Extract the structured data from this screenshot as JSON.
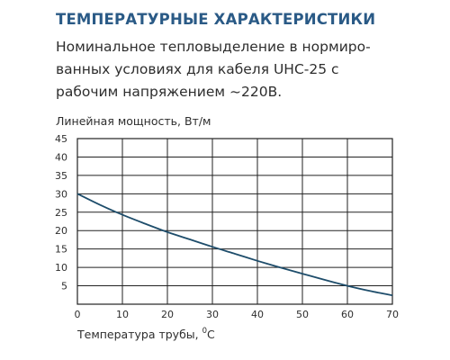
{
  "header": {
    "title": "ТЕМПЕРАТУРНЫЕ ХАРАКТЕРИСТИКИ",
    "description_lines": [
      "Номинальное тепловыделение в нормиро-",
      "ванных условиях для кабеля UHC-25 с",
      "рабочим напряжением ~220В."
    ]
  },
  "chart_data": {
    "type": "line",
    "title": "",
    "ylabel": "Линейная мощность, Вт/м",
    "xlabel_text": "Температура трубы, ",
    "xlabel_unit_sup": "0",
    "xlabel_unit": "C",
    "xlim": [
      0,
      70
    ],
    "ylim": [
      0,
      45
    ],
    "x_ticks": [
      0,
      10,
      20,
      30,
      40,
      50,
      60,
      70
    ],
    "y_ticks": [
      5,
      10,
      15,
      20,
      25,
      30,
      35,
      40,
      45
    ],
    "grid": true,
    "series": [
      {
        "x": [
          0,
          5,
          10,
          15,
          20,
          25,
          30,
          35,
          40,
          45,
          50,
          55,
          60,
          65,
          70
        ],
        "y": [
          30,
          27,
          24.3,
          21.9,
          19.6,
          17.6,
          15.6,
          13.7,
          11.8,
          10.0,
          8.3,
          6.6,
          5.0,
          3.6,
          2.4
        ],
        "color": "#1e4d6b"
      }
    ]
  },
  "colors": {
    "title": "#2a5a86",
    "text": "#2e2e2e",
    "grid": "#222222",
    "curve": "#1e4d6b"
  }
}
